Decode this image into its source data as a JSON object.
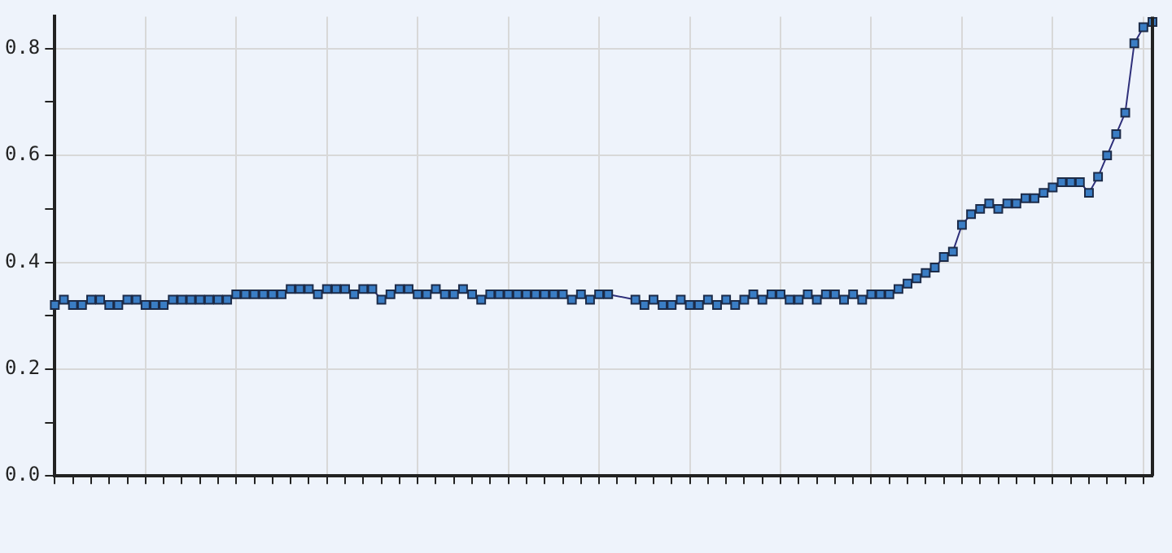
{
  "chart_data": {
    "type": "line",
    "categories": [
      null,
      null,
      null,
      null,
      null,
      null,
      null,
      null,
      null,
      null,
      null,
      null,
      null,
      null,
      null,
      null,
      null,
      null,
      null,
      null,
      null,
      null,
      null,
      null,
      null,
      null,
      null,
      null,
      null,
      null,
      null,
      null,
      null,
      null,
      null,
      null,
      null,
      null,
      null,
      null,
      null,
      null,
      null,
      null,
      null,
      null,
      null,
      null,
      null,
      null,
      null,
      null,
      null,
      null,
      null,
      null,
      null,
      null,
      null,
      null,
      null,
      null,
      null,
      null,
      null,
      null,
      null,
      null,
      null,
      null,
      null,
      null,
      null,
      null,
      null,
      null,
      null,
      null,
      null,
      null,
      null,
      null,
      null,
      null,
      null,
      null,
      null,
      null,
      null,
      null,
      null,
      null,
      null,
      null,
      null,
      null,
      null,
      null,
      null,
      null,
      null,
      null,
      null,
      null,
      null,
      null,
      null,
      null,
      null,
      null,
      null,
      null,
      null,
      null,
      null,
      null,
      null,
      null,
      null,
      null,
      null,
      null
    ],
    "series": [
      {
        "color": "#3a7dc4",
        "values": [
          0.32,
          0.33,
          0.32,
          0.32,
          0.33,
          0.33,
          0.32,
          0.32,
          0.33,
          0.33,
          0.32,
          0.32,
          0.32,
          0.33,
          0.33,
          0.33,
          0.33,
          0.33,
          0.33,
          0.33,
          0.34,
          0.34,
          0.34,
          0.34,
          0.34,
          0.34,
          0.35,
          0.35,
          0.35,
          0.34,
          0.35,
          0.35,
          0.35,
          0.34,
          0.35,
          0.35,
          0.33,
          0.34,
          0.35,
          0.35,
          0.34,
          0.34,
          0.35,
          0.34,
          0.34,
          0.35,
          0.34,
          0.33,
          0.34,
          0.34,
          0.34,
          0.34,
          0.34,
          0.34,
          0.34,
          0.34,
          0.34,
          0.33,
          0.34,
          0.33,
          0.34,
          0.34,
          null,
          null,
          0.33,
          0.32,
          0.33,
          0.32,
          0.32,
          0.33,
          0.32,
          0.32,
          0.33,
          0.32,
          0.33,
          0.32,
          0.33,
          0.34,
          0.33,
          0.34,
          0.34,
          0.33,
          0.33,
          0.34,
          0.33,
          0.34,
          0.34,
          0.33,
          0.34,
          0.33,
          0.34,
          0.34,
          0.34,
          0.35,
          0.36,
          0.37,
          0.38,
          0.39,
          0.41,
          0.42,
          0.47,
          0.49,
          0.5,
          0.51,
          0.5,
          0.51,
          0.51,
          0.52,
          0.52,
          0.53,
          0.54,
          0.55,
          0.55,
          0.55,
          0.53,
          0.56,
          0.6,
          0.64,
          0.68,
          0.81,
          0.84,
          0.85
        ]
      }
    ],
    "ylim": [
      0,
      0.86
    ],
    "yticks": [
      {
        "value": 0,
        "label": "0.0"
      },
      {
        "value": 0.1,
        "label": null
      },
      {
        "value": 0.2,
        "label": "0.2"
      },
      {
        "value": 0.3,
        "label": null
      },
      {
        "value": 0.4,
        "label": "0.4"
      },
      {
        "value": 0.5,
        "label": null
      },
      {
        "value": 0.6,
        "label": "0.6"
      },
      {
        "value": 0.7,
        "label": null
      },
      {
        "value": 0.8,
        "label": "0.8"
      }
    ],
    "grid": true,
    "legend": false,
    "marker": "square",
    "line_style": "solid"
  }
}
